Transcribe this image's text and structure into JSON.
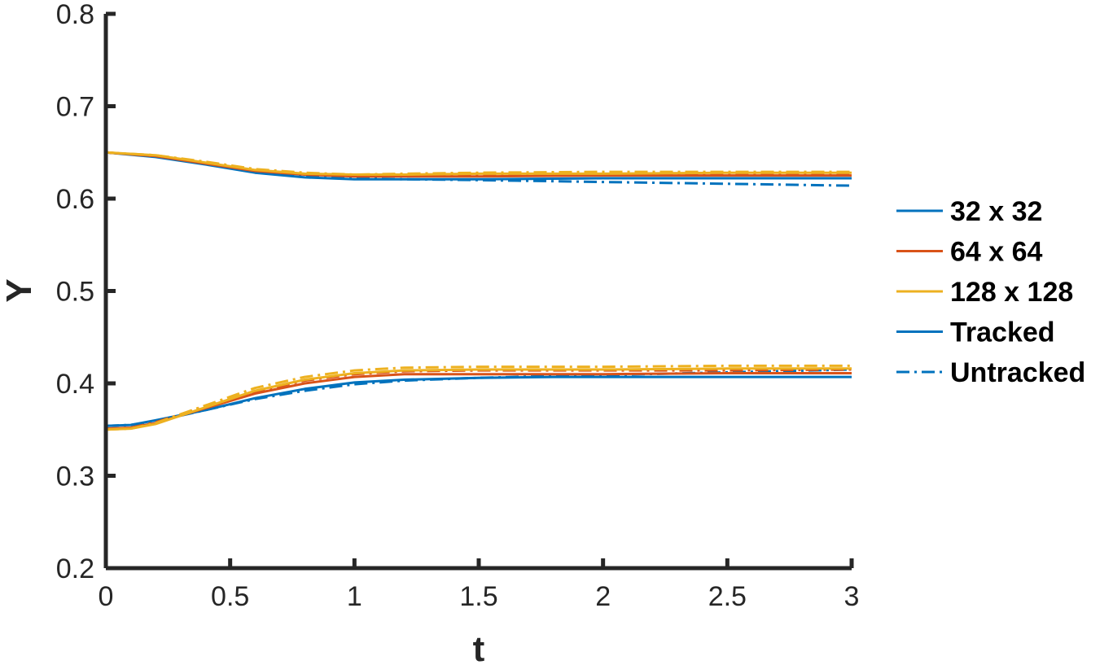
{
  "chart_data": {
    "type": "line",
    "title": "",
    "xlabel": "t",
    "ylabel": "Y",
    "xlim": [
      0,
      3
    ],
    "ylim": [
      0.2,
      0.8
    ],
    "xticks": [
      0,
      0.5,
      1,
      1.5,
      2,
      2.5,
      3
    ],
    "xtick_labels": [
      "0",
      "0.5",
      "1",
      "1.5",
      "2",
      "2.5",
      "3"
    ],
    "yticks": [
      0.2,
      0.3,
      0.4,
      0.5,
      0.6,
      0.7,
      0.8
    ],
    "ytick_labels": [
      "0.2",
      "0.3",
      "0.4",
      "0.5",
      "0.6",
      "0.7",
      "0.8"
    ],
    "grid": false,
    "legend_position": "outside-right",
    "legend": [
      {
        "label": "32 x 32",
        "color": "#0072BD",
        "style": "solid"
      },
      {
        "label": "64 x 64",
        "color": "#D95319",
        "style": "solid"
      },
      {
        "label": "128 x 128",
        "color": "#EDB120",
        "style": "solid"
      },
      {
        "label": "Tracked",
        "color": "#0072BD",
        "style": "solid"
      },
      {
        "label": "Untracked",
        "color": "#0072BD",
        "style": "dashdot"
      }
    ],
    "series": [
      {
        "legend_index": 0,
        "color": "#0072BD",
        "dash": "solid",
        "x": [
          0,
          0.2,
          0.4,
          0.6,
          0.8,
          1.0,
          1.2,
          1.5,
          2.0,
          2.5,
          3.0
        ],
        "y": [
          0.65,
          0.645,
          0.637,
          0.628,
          0.623,
          0.621,
          0.621,
          0.621,
          0.622,
          0.622,
          0.622
        ]
      },
      {
        "legend_index": null,
        "color": "#0072BD",
        "dash": "dashdot",
        "x": [
          0,
          0.2,
          0.4,
          0.6,
          0.8,
          1.0,
          1.2,
          1.5,
          2.0,
          2.5,
          3.0
        ],
        "y": [
          0.65,
          0.646,
          0.638,
          0.629,
          0.624,
          0.622,
          0.621,
          0.62,
          0.618,
          0.616,
          0.614
        ]
      },
      {
        "legend_index": 1,
        "color": "#D95319",
        "dash": "solid",
        "x": [
          0,
          0.2,
          0.4,
          0.6,
          0.8,
          1.0,
          1.2,
          1.5,
          2.0,
          2.5,
          3.0
        ],
        "y": [
          0.65,
          0.646,
          0.638,
          0.63,
          0.626,
          0.624,
          0.624,
          0.624,
          0.625,
          0.625,
          0.625
        ]
      },
      {
        "legend_index": null,
        "color": "#D95319",
        "dash": "dashdot",
        "x": [
          0,
          0.2,
          0.4,
          0.6,
          0.8,
          1.0,
          1.2,
          1.5,
          2.0,
          2.5,
          3.0
        ],
        "y": [
          0.65,
          0.646,
          0.639,
          0.631,
          0.626,
          0.625,
          0.625,
          0.625,
          0.626,
          0.626,
          0.626
        ]
      },
      {
        "legend_index": 2,
        "color": "#EDB120",
        "dash": "solid",
        "x": [
          0,
          0.2,
          0.4,
          0.6,
          0.8,
          1.0,
          1.2,
          1.5,
          2.0,
          2.5,
          3.0
        ],
        "y": [
          0.65,
          0.647,
          0.639,
          0.631,
          0.627,
          0.626,
          0.626,
          0.627,
          0.627,
          0.628,
          0.628
        ]
      },
      {
        "legend_index": null,
        "color": "#EDB120",
        "dash": "dashdot",
        "x": [
          0,
          0.2,
          0.4,
          0.6,
          0.8,
          1.0,
          1.2,
          1.5,
          2.0,
          2.5,
          3.0
        ],
        "y": [
          0.65,
          0.647,
          0.64,
          0.632,
          0.628,
          0.626,
          0.627,
          0.628,
          0.629,
          0.629,
          0.629
        ]
      },
      {
        "legend_index": 3,
        "color": "#0072BD",
        "dash": "solid",
        "x": [
          0,
          0.1,
          0.2,
          0.4,
          0.6,
          0.8,
          1.0,
          1.2,
          1.5,
          1.8,
          2.0,
          2.5,
          3.0
        ],
        "y": [
          0.354,
          0.355,
          0.36,
          0.371,
          0.384,
          0.394,
          0.401,
          0.404,
          0.406,
          0.407,
          0.407,
          0.407,
          0.407
        ]
      },
      {
        "legend_index": 4,
        "color": "#0072BD",
        "dash": "dashdot",
        "x": [
          0,
          0.1,
          0.2,
          0.4,
          0.6,
          0.8,
          1.0,
          1.2,
          1.5,
          1.8,
          2.0,
          2.5,
          3.0
        ],
        "y": [
          0.354,
          0.355,
          0.359,
          0.371,
          0.383,
          0.392,
          0.399,
          0.403,
          0.406,
          0.408,
          0.409,
          0.412,
          0.415
        ]
      },
      {
        "legend_index": null,
        "color": "#D95319",
        "dash": "solid",
        "x": [
          0,
          0.1,
          0.2,
          0.4,
          0.6,
          0.8,
          1.0,
          1.2,
          1.5,
          2.0,
          2.5,
          3.0
        ],
        "y": [
          0.351,
          0.352,
          0.357,
          0.373,
          0.389,
          0.4,
          0.407,
          0.41,
          0.41,
          0.41,
          0.411,
          0.411
        ]
      },
      {
        "legend_index": null,
        "color": "#D95319",
        "dash": "dashdot",
        "x": [
          0,
          0.1,
          0.2,
          0.4,
          0.6,
          0.8,
          1.0,
          1.2,
          1.5,
          2.0,
          2.5,
          3.0
        ],
        "y": [
          0.351,
          0.352,
          0.358,
          0.375,
          0.391,
          0.403,
          0.41,
          0.413,
          0.414,
          0.414,
          0.414,
          0.415
        ]
      },
      {
        "legend_index": null,
        "color": "#EDB120",
        "dash": "solid",
        "x": [
          0,
          0.1,
          0.2,
          0.4,
          0.6,
          0.8,
          1.0,
          1.2,
          1.5,
          2.0,
          2.5,
          3.0
        ],
        "y": [
          0.35,
          0.351,
          0.356,
          0.374,
          0.392,
          0.404,
          0.411,
          0.414,
          0.415,
          0.415,
          0.416,
          0.416
        ]
      },
      {
        "legend_index": null,
        "color": "#EDB120",
        "dash": "dashdot",
        "x": [
          0,
          0.1,
          0.2,
          0.4,
          0.6,
          0.8,
          1.0,
          1.2,
          1.5,
          2.0,
          2.5,
          3.0
        ],
        "y": [
          0.35,
          0.351,
          0.357,
          0.376,
          0.395,
          0.407,
          0.414,
          0.417,
          0.418,
          0.418,
          0.419,
          0.419
        ]
      }
    ]
  }
}
